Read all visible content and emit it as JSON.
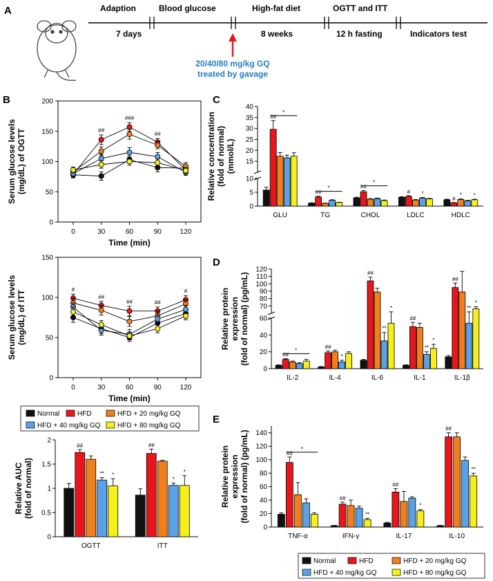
{
  "colors": {
    "Normal": "#111111",
    "HFD": "#e8151b",
    "HFD + 20 mg/kg GQ": "#f07f1d",
    "HFD + 40 mg/kg GQ": "#5aa2e6",
    "HFD + 80 mg/kg GQ": "#f5f01a",
    "arrow": "#e8151b",
    "gavage_text": "#1f7ec4"
  },
  "panel_labels": {
    "A": "A",
    "B": "B",
    "C": "C",
    "D": "D",
    "E": "E"
  },
  "timeline": {
    "stages": [
      "Adaption",
      "Blood glucose",
      "High-fat diet",
      "OGTT and ITT"
    ],
    "end_label": "Indicators test",
    "durations": [
      "7 days",
      "8 weeks",
      "12 h fasting"
    ],
    "gavage_line1": "20/40/80 mg/kg GQ",
    "gavage_line2": "treated by gavage"
  },
  "legend": {
    "labels": [
      "Normal",
      "HFD",
      "HFD + 20 mg/kg GQ",
      "HFD + 40 mg/kg GQ",
      "HFD + 80 mg/kg GQ"
    ]
  },
  "chart_data": [
    {
      "id": "ogtt",
      "type": "line",
      "ylabel": [
        "Serum glucose levels",
        "(mg/dL) of OGTT"
      ],
      "xlabel": "Time (min)",
      "x": [
        0,
        30,
        60,
        90,
        120
      ],
      "ylim": [
        0,
        200
      ],
      "yticks": [
        0,
        50,
        100,
        150,
        200
      ],
      "annotations": [
        {
          "x": 30,
          "text": "##"
        },
        {
          "x": 60,
          "text": "###"
        },
        {
          "x": 90,
          "text": "##"
        }
      ],
      "series": [
        {
          "name": "Normal",
          "values": [
            78,
            76,
            103,
            90,
            89
          ],
          "err": [
            5,
            7,
            6,
            7,
            5
          ]
        },
        {
          "name": "HFD",
          "values": [
            79,
            136,
            157,
            132,
            86
          ],
          "err": [
            5,
            8,
            7,
            6,
            6
          ]
        },
        {
          "name": "HFD + 20 mg/kg GQ",
          "values": [
            83,
            117,
            145,
            127,
            92
          ],
          "err": [
            6,
            7,
            8,
            6,
            6
          ]
        },
        {
          "name": "HFD + 40 mg/kg GQ",
          "values": [
            80,
            105,
            115,
            108,
            82
          ],
          "err": [
            5,
            7,
            8,
            7,
            5
          ]
        },
        {
          "name": "HFD + 80 mg/kg GQ",
          "values": [
            86,
            95,
            100,
            98,
            85
          ],
          "err": [
            5,
            6,
            6,
            6,
            5
          ]
        }
      ]
    },
    {
      "id": "itt",
      "type": "line",
      "ylabel": [
        "Serum glucose levels",
        "(mg/dL) of ITT"
      ],
      "xlabel": "Time (min)",
      "x": [
        0,
        30,
        60,
        90,
        120
      ],
      "ylim": [
        0,
        150
      ],
      "yticks": [
        0,
        50,
        100,
        150
      ],
      "annotations": [
        {
          "x": 0,
          "text": "#"
        },
        {
          "x": 30,
          "text": "##"
        },
        {
          "x": 60,
          "text": "##"
        },
        {
          "x": 90,
          "text": "##"
        },
        {
          "x": 120,
          "text": "#"
        }
      ],
      "series": [
        {
          "name": "Normal",
          "values": [
            75,
            61,
            50,
            68,
            80
          ],
          "err": [
            6,
            6,
            5,
            5,
            6
          ]
        },
        {
          "name": "HFD",
          "values": [
            99,
            90,
            83,
            83,
            97
          ],
          "err": [
            5,
            5,
            6,
            5,
            5
          ]
        },
        {
          "name": "HFD + 20 mg/kg GQ",
          "values": [
            93,
            84,
            70,
            77,
            92
          ],
          "err": [
            6,
            6,
            6,
            6,
            5
          ]
        },
        {
          "name": "HFD + 40 mg/kg GQ",
          "values": [
            88,
            59,
            54,
            73,
            85
          ],
          "err": [
            5,
            6,
            6,
            5,
            5
          ]
        },
        {
          "name": "HFD + 80 mg/kg GQ",
          "values": [
            82,
            66,
            52,
            61,
            77
          ],
          "err": [
            6,
            5,
            5,
            5,
            5
          ]
        }
      ]
    },
    {
      "id": "auc",
      "type": "bar",
      "ylabel": [
        "Relative AUC",
        "(fold of normal)"
      ],
      "categories": [
        "OGTT",
        "ITT"
      ],
      "ylim": [
        0,
        2.0
      ],
      "yticks": [
        0,
        0.5,
        1.0,
        1.5,
        2.0
      ],
      "series": [
        {
          "name": "Normal",
          "values": [
            1.0,
            0.86
          ],
          "err": [
            0.1,
            0.13
          ],
          "sig": [
            "",
            ""
          ]
        },
        {
          "name": "HFD",
          "values": [
            1.74,
            1.72
          ],
          "err": [
            0.06,
            0.09
          ],
          "sig": [
            "##",
            "##"
          ]
        },
        {
          "name": "HFD + 20 mg/kg GQ",
          "values": [
            1.6,
            1.56
          ],
          "err": [
            0.07,
            0.02
          ],
          "sig": [
            "",
            ""
          ]
        },
        {
          "name": "HFD + 40 mg/kg GQ",
          "values": [
            1.17,
            1.06
          ],
          "err": [
            0.05,
            0.05
          ],
          "sig": [
            "**",
            "*"
          ]
        },
        {
          "name": "HFD + 80 mg/kg GQ",
          "values": [
            1.05,
            1.06
          ],
          "err": [
            0.15,
            0.2
          ],
          "sig": [
            "*",
            "*"
          ]
        }
      ]
    },
    {
      "id": "lipids",
      "type": "bar",
      "ylabel": [
        "Relative concentration",
        "(fold of normal)",
        "(mmol/L)"
      ],
      "categories": [
        "GLU",
        "TG",
        "CHOL",
        "LDLC",
        "HDLC"
      ],
      "axis_break": {
        "lower": [
          0,
          10
        ],
        "upper": [
          10,
          40
        ],
        "ticks_lower": [
          0,
          5,
          10
        ],
        "ticks_upper": [
          15,
          20,
          25,
          30,
          35,
          40
        ]
      },
      "series": [
        {
          "name": "Normal",
          "values": [
            5.8,
            1.1,
            3.0,
            3.2,
            2.3
          ],
          "err": [
            1.0,
            0.1,
            0.2,
            0.2,
            0.2
          ],
          "sig": [
            "",
            "",
            "",
            "",
            ""
          ]
        },
        {
          "name": "HFD",
          "values": [
            29.6,
            3.3,
            5.2,
            3.5,
            1.2
          ],
          "err": [
            4.0,
            0.3,
            0.4,
            0.3,
            0.1
          ],
          "sig": [
            "##",
            "##",
            "##",
            "#",
            "#"
          ]
        },
        {
          "name": "HFD + 20 mg/kg GQ",
          "values": [
            17.3,
            1.0,
            2.5,
            2.2,
            2.4
          ],
          "err": [
            1.7,
            0.1,
            0.2,
            0.2,
            0.2
          ],
          "sig": [
            "",
            "",
            "",
            "",
            ""
          ]
        },
        {
          "name": "HFD + 40 mg/kg GQ",
          "values": [
            16.6,
            2.1,
            2.7,
            2.9,
            1.9
          ],
          "err": [
            1.2,
            0.2,
            0.2,
            0.2,
            0.2
          ],
          "sig": [
            "",
            "",
            "",
            "",
            ""
          ]
        },
        {
          "name": "HFD + 80 mg/kg GQ",
          "values": [
            17.3,
            1.3,
            2.0,
            2.6,
            2.3
          ],
          "err": [
            1.6,
            0.1,
            0.2,
            0.2,
            0.2
          ],
          "sig": [
            "",
            "",
            "",
            "",
            ""
          ]
        }
      ],
      "brackets": [
        {
          "cat": 0,
          "text": "*"
        },
        {
          "cat": 1,
          "text": "*"
        },
        {
          "cat": 2,
          "text": "*"
        },
        {
          "cat": 3,
          "text": "*",
          "ser": 3
        },
        {
          "cat": 4,
          "text": "*",
          "ser": 2
        },
        {
          "cat": 4,
          "text": "*",
          "ser": 4
        }
      ]
    },
    {
      "id": "cytokines1",
      "type": "bar",
      "ylabel": [
        "Relative protein",
        "expression",
        "(fold of normal) (pg/mL)"
      ],
      "categories": [
        "IL-2",
        "IL-4",
        "IL-6",
        "IL-1",
        "IL-1β"
      ],
      "axis_break": {
        "lower": [
          0,
          60
        ],
        "upper": [
          60,
          120
        ],
        "ticks_lower": [
          0,
          20,
          40,
          60
        ],
        "ticks_upper": [
          70,
          80,
          90,
          100,
          110,
          120
        ]
      },
      "series": [
        {
          "name": "Normal",
          "values": [
            4,
            2,
            10,
            4,
            14
          ],
          "err": [
            0.5,
            0.5,
            1,
            0.6,
            1.5
          ],
          "sig": [
            "",
            "",
            "",
            "",
            ""
          ]
        },
        {
          "name": "HFD",
          "values": [
            11,
            19,
            104,
            50,
            95
          ],
          "err": [
            1,
            2,
            5,
            5,
            6
          ],
          "sig": [
            "##",
            "##",
            "##",
            "##",
            "##"
          ]
        },
        {
          "name": "HFD + 20 mg/kg GQ",
          "values": [
            8,
            20,
            89,
            49,
            89
          ],
          "err": [
            1,
            2,
            5,
            5,
            28
          ],
          "sig": [
            "",
            "",
            "",
            "",
            ""
          ]
        },
        {
          "name": "HFD + 40 mg/kg GQ",
          "values": [
            6,
            8,
            33,
            17,
            54
          ],
          "err": [
            1,
            2,
            10,
            3,
            8
          ],
          "sig": [
            "",
            "*",
            "**",
            "**",
            "**"
          ]
        },
        {
          "name": "HFD + 80 mg/kg GQ",
          "values": [
            9,
            18,
            54,
            24,
            66
          ],
          "err": [
            2,
            2,
            8,
            5,
            3
          ],
          "sig": [
            "",
            "",
            "*",
            "*",
            "*"
          ]
        }
      ],
      "brackets": [
        {
          "cat": 0,
          "text": "*"
        }
      ]
    },
    {
      "id": "cytokines2",
      "type": "bar",
      "ylabel": [
        "Relative protein",
        "expression",
        "(fold of normal) (pg/mL)"
      ],
      "categories": [
        "TNF-α",
        "IFN-γ",
        "IL-17",
        "IL-10"
      ],
      "ylim": [
        0,
        150
      ],
      "yticks": [
        0,
        20,
        40,
        60,
        80,
        100,
        120,
        140
      ],
      "series": [
        {
          "name": "Normal",
          "values": [
            19,
            2,
            6,
            2
          ],
          "err": [
            2,
            0.5,
            1,
            0.5
          ],
          "sig": [
            "",
            "",
            "",
            ""
          ]
        },
        {
          "name": "HFD",
          "values": [
            96,
            34,
            52,
            134
          ],
          "err": [
            8,
            3,
            5,
            6
          ],
          "sig": [
            "##",
            "##",
            "##",
            "##"
          ]
        },
        {
          "name": "HFD + 20 mg/kg GQ",
          "values": [
            48,
            32,
            38,
            134
          ],
          "err": [
            18,
            8,
            15,
            6
          ],
          "sig": [
            "",
            "",
            "",
            ""
          ]
        },
        {
          "name": "HFD + 40 mg/kg GQ",
          "values": [
            36,
            28,
            43,
            99
          ],
          "err": [
            6,
            3,
            2,
            5
          ],
          "sig": [
            "",
            "",
            "",
            ""
          ]
        },
        {
          "name": "HFD + 80 mg/kg GQ",
          "values": [
            19,
            11,
            24,
            76
          ],
          "err": [
            2,
            2,
            2,
            4
          ],
          "sig": [
            "",
            "**",
            "*",
            "**"
          ]
        }
      ],
      "brackets": [
        {
          "cat": 0,
          "text": "*"
        }
      ]
    }
  ]
}
